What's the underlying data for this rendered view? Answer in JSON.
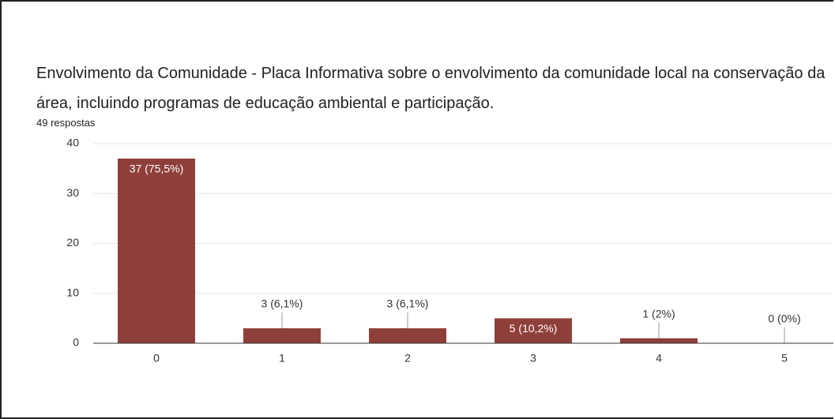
{
  "chart_data": {
    "type": "bar",
    "title": "Envolvimento da Comunidade - Placa Informativa sobre o envolvimento da comunidade local na conservação da área, incluindo programas de educação ambiental e participação.",
    "subtitle": "49 respostas",
    "categories": [
      "0",
      "1",
      "2",
      "3",
      "4",
      "5"
    ],
    "values": [
      37,
      3,
      3,
      5,
      1,
      0
    ],
    "value_labels": [
      "37 (75,5%)",
      "3 (6,1%)",
      "3 (6,1%)",
      "5 (10,2%)",
      "1 (2%)",
      "0 (0%)"
    ],
    "color": "#8f3f3a",
    "ylim": [
      0,
      40
    ],
    "yticks": [
      0,
      10,
      20,
      30,
      40
    ],
    "grid": true
  }
}
